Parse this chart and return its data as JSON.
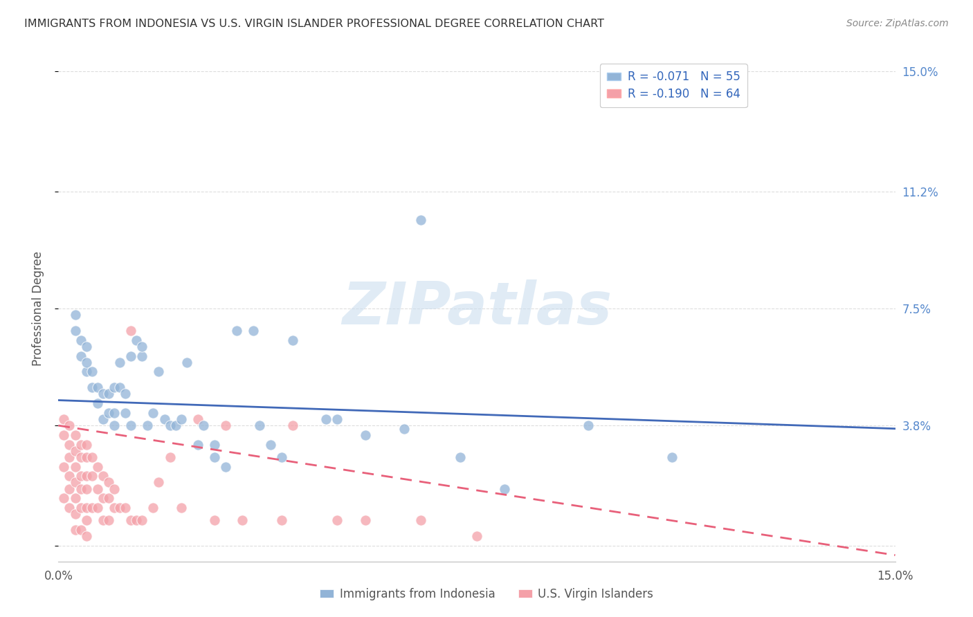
{
  "title": "IMMIGRANTS FROM INDONESIA VS U.S. VIRGIN ISLANDER PROFESSIONAL DEGREE CORRELATION CHART",
  "source": "Source: ZipAtlas.com",
  "ylabel": "Professional Degree",
  "y_ticks": [
    0.0,
    0.038,
    0.075,
    0.112,
    0.15
  ],
  "y_tick_labels": [
    "",
    "3.8%",
    "7.5%",
    "11.2%",
    "15.0%"
  ],
  "xlim": [
    0.0,
    0.15
  ],
  "ylim": [
    -0.005,
    0.155
  ],
  "watermark": "ZIPatlas",
  "legend_blue_r": "R = -0.071",
  "legend_blue_n": "N = 55",
  "legend_pink_r": "R = -0.190",
  "legend_pink_n": "N = 64",
  "legend_label_blue": "Immigrants from Indonesia",
  "legend_label_pink": "U.S. Virgin Islanders",
  "blue_color": "#92B4D7",
  "pink_color": "#F4A0A8",
  "blue_line_color": "#4169B8",
  "pink_line_color": "#E8607A",
  "blue_scatter_x": [
    0.003,
    0.003,
    0.004,
    0.004,
    0.005,
    0.005,
    0.005,
    0.006,
    0.006,
    0.007,
    0.007,
    0.008,
    0.008,
    0.009,
    0.009,
    0.01,
    0.01,
    0.01,
    0.011,
    0.011,
    0.012,
    0.012,
    0.013,
    0.013,
    0.014,
    0.015,
    0.015,
    0.016,
    0.017,
    0.018,
    0.019,
    0.02,
    0.021,
    0.022,
    0.023,
    0.025,
    0.026,
    0.028,
    0.028,
    0.03,
    0.032,
    0.035,
    0.036,
    0.038,
    0.04,
    0.042,
    0.048,
    0.05,
    0.055,
    0.062,
    0.065,
    0.072,
    0.08,
    0.095,
    0.11
  ],
  "blue_scatter_y": [
    0.068,
    0.073,
    0.06,
    0.065,
    0.055,
    0.058,
    0.063,
    0.05,
    0.055,
    0.045,
    0.05,
    0.04,
    0.048,
    0.042,
    0.048,
    0.038,
    0.042,
    0.05,
    0.05,
    0.058,
    0.042,
    0.048,
    0.038,
    0.06,
    0.065,
    0.06,
    0.063,
    0.038,
    0.042,
    0.055,
    0.04,
    0.038,
    0.038,
    0.04,
    0.058,
    0.032,
    0.038,
    0.032,
    0.028,
    0.025,
    0.068,
    0.068,
    0.038,
    0.032,
    0.028,
    0.065,
    0.04,
    0.04,
    0.035,
    0.037,
    0.103,
    0.028,
    0.018,
    0.038,
    0.028
  ],
  "pink_scatter_x": [
    0.001,
    0.001,
    0.001,
    0.001,
    0.002,
    0.002,
    0.002,
    0.002,
    0.002,
    0.002,
    0.003,
    0.003,
    0.003,
    0.003,
    0.003,
    0.003,
    0.003,
    0.004,
    0.004,
    0.004,
    0.004,
    0.004,
    0.004,
    0.005,
    0.005,
    0.005,
    0.005,
    0.005,
    0.005,
    0.005,
    0.006,
    0.006,
    0.006,
    0.007,
    0.007,
    0.007,
    0.008,
    0.008,
    0.008,
    0.009,
    0.009,
    0.009,
    0.01,
    0.01,
    0.011,
    0.012,
    0.013,
    0.013,
    0.014,
    0.015,
    0.017,
    0.018,
    0.02,
    0.022,
    0.025,
    0.028,
    0.03,
    0.033,
    0.04,
    0.042,
    0.05,
    0.055,
    0.065,
    0.075
  ],
  "pink_scatter_y": [
    0.04,
    0.035,
    0.025,
    0.015,
    0.038,
    0.032,
    0.028,
    0.022,
    0.018,
    0.012,
    0.035,
    0.03,
    0.025,
    0.02,
    0.015,
    0.01,
    0.005,
    0.032,
    0.028,
    0.022,
    0.018,
    0.012,
    0.005,
    0.032,
    0.028,
    0.022,
    0.018,
    0.012,
    0.008,
    0.003,
    0.028,
    0.022,
    0.012,
    0.025,
    0.018,
    0.012,
    0.022,
    0.015,
    0.008,
    0.02,
    0.015,
    0.008,
    0.018,
    0.012,
    0.012,
    0.012,
    0.008,
    0.068,
    0.008,
    0.008,
    0.012,
    0.02,
    0.028,
    0.012,
    0.04,
    0.008,
    0.038,
    0.008,
    0.008,
    0.038,
    0.008,
    0.008,
    0.008,
    0.003
  ],
  "blue_trend_y_start": 0.046,
  "blue_trend_y_end": 0.037,
  "pink_trend_y_start": 0.038,
  "pink_trend_y_end": -0.003,
  "background_color": "#FFFFFF",
  "grid_color": "#DDDDDD",
  "title_color": "#333333",
  "right_tick_color": "#5588CC"
}
